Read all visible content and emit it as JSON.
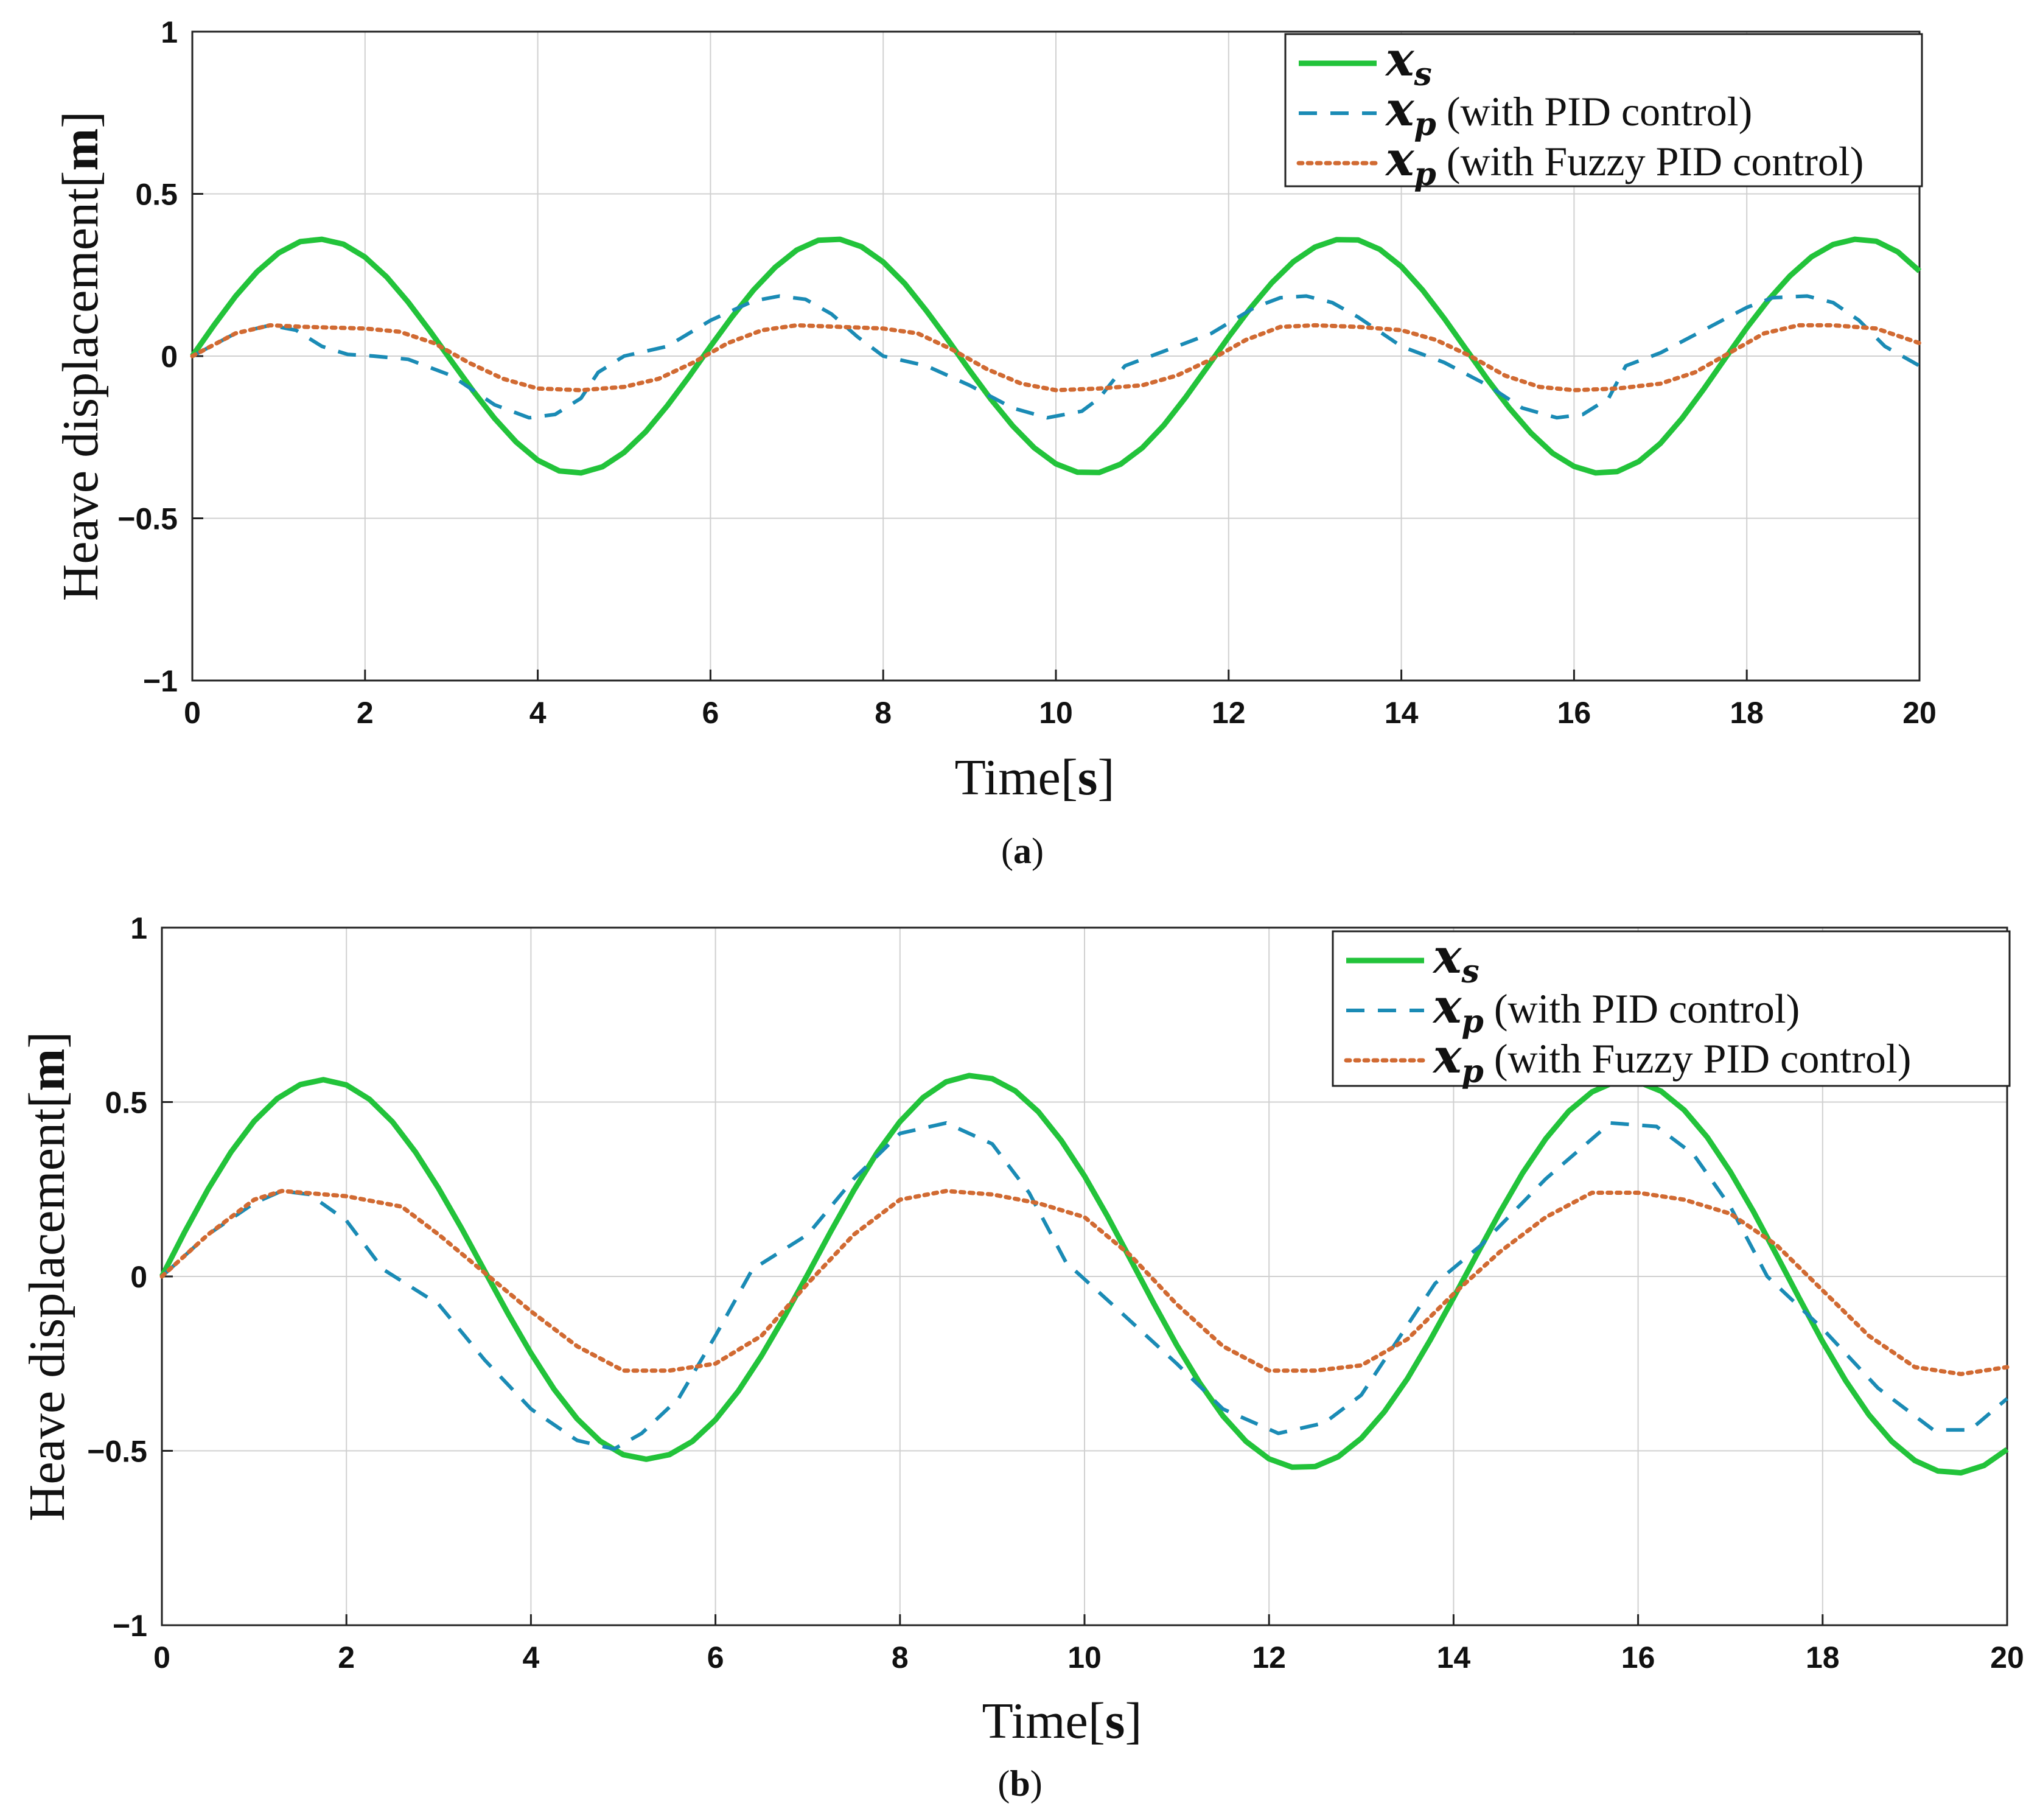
{
  "chart_data": [
    {
      "type": "line",
      "panel": "a",
      "caption_open": "(",
      "caption_letter": "a",
      "caption_close": ")",
      "xlabel_main": "Time",
      "xlabel_unit": "s",
      "ylabel_main": "Heave displacement",
      "ylabel_unit": "m",
      "xlim": [
        0,
        20
      ],
      "ylim": [
        -1,
        1
      ],
      "xticks": [
        0,
        2,
        4,
        6,
        8,
        10,
        12,
        14,
        16,
        18,
        20
      ],
      "yticks": [
        -1,
        -0.5,
        0,
        0.5,
        1
      ],
      "xtick_labels": [
        "0",
        "2",
        "4",
        "6",
        "8",
        "10",
        "12",
        "14",
        "16",
        "18",
        "20"
      ],
      "ytick_labels": [
        "−1",
        "−0.5",
        "0",
        "0.5",
        "1"
      ],
      "grid": true,
      "legend_position": "top-right",
      "series": [
        {
          "name": "x_s",
          "legend_symbol": "x",
          "legend_sub": "s",
          "legend_suffix": "",
          "color": "#22c33a",
          "style": "solid",
          "x": [
            0,
            0.25,
            0.5,
            0.75,
            1,
            1.25,
            1.5,
            1.75,
            2,
            2.25,
            2.5,
            2.75,
            3,
            3.25,
            3.5,
            3.75,
            4,
            4.25,
            4.5,
            4.75,
            5,
            5.25,
            5.5,
            5.75,
            6,
            6.25,
            6.5,
            6.75,
            7,
            7.25,
            7.5,
            7.75,
            8,
            8.25,
            8.5,
            8.75,
            9,
            9.25,
            9.5,
            9.75,
            10,
            10.25,
            10.5,
            10.75,
            11,
            11.25,
            11.5,
            11.75,
            12,
            12.25,
            12.5,
            12.75,
            13,
            13.25,
            13.5,
            13.75,
            14,
            14.25,
            14.5,
            14.75,
            15,
            15.25,
            15.5,
            15.75,
            16,
            16.25,
            16.5,
            16.75,
            17,
            17.25,
            17.5,
            17.75,
            18,
            18.25,
            18.5,
            18.75,
            19,
            19.25,
            19.5,
            19.75,
            20
          ],
          "y": [
            0,
            0.095,
            0.184,
            0.26,
            0.318,
            0.353,
            0.36,
            0.345,
            0.305,
            0.244,
            0.166,
            0.078,
            -0.015,
            -0.107,
            -0.192,
            -0.265,
            -0.321,
            -0.354,
            -0.36,
            -0.341,
            -0.297,
            -0.233,
            -0.153,
            -0.064,
            0.03,
            0.121,
            0.204,
            0.274,
            0.327,
            0.357,
            0.36,
            0.337,
            0.29,
            0.223,
            0.14,
            0.05,
            -0.044,
            -0.134,
            -0.215,
            -0.283,
            -0.332,
            -0.358,
            -0.359,
            -0.333,
            -0.283,
            -0.213,
            -0.128,
            -0.035,
            0.059,
            0.147,
            0.226,
            0.291,
            0.336,
            0.359,
            0.358,
            0.329,
            0.276,
            0.202,
            0.115,
            0.021,
            -0.073,
            -0.16,
            -0.237,
            -0.299,
            -0.34,
            -0.36,
            -0.356,
            -0.325,
            -0.269,
            -0.192,
            -0.102,
            -0.007,
            0.087,
            0.173,
            0.247,
            0.306,
            0.344,
            0.36,
            0.354,
            0.321,
            0.262
          ]
        },
        {
          "name": "x_p (with PID control)",
          "legend_symbol": "x",
          "legend_sub": "p",
          "legend_suffix": " (with PID control)",
          "color": "#1a8bb5",
          "style": "dashed",
          "x": [
            0,
            0.5,
            0.9,
            1.2,
            1.5,
            1.8,
            2.1,
            2.5,
            3,
            3.5,
            3.9,
            4.2,
            4.5,
            4.7,
            5,
            5.5,
            6,
            6.5,
            6.8,
            7.1,
            7.4,
            7.7,
            8,
            8.5,
            9,
            9.5,
            9.9,
            10.3,
            10.5,
            10.8,
            11.2,
            11.8,
            12.3,
            12.6,
            12.9,
            13.2,
            13.5,
            14,
            14.5,
            15,
            15.4,
            15.8,
            16.1,
            16.4,
            16.6,
            17,
            17.5,
            18,
            18.3,
            18.7,
            19,
            19.3,
            19.6,
            20
          ],
          "y": [
            0,
            0.07,
            0.095,
            0.08,
            0.03,
            0.005,
            0,
            -0.01,
            -0.06,
            -0.15,
            -0.19,
            -0.18,
            -0.13,
            -0.05,
            0,
            0.03,
            0.11,
            0.17,
            0.185,
            0.175,
            0.13,
            0.06,
            0,
            -0.03,
            -0.09,
            -0.16,
            -0.19,
            -0.17,
            -0.13,
            -0.03,
            0.01,
            0.07,
            0.15,
            0.18,
            0.185,
            0.165,
            0.12,
            0.03,
            -0.02,
            -0.09,
            -0.16,
            -0.19,
            -0.18,
            -0.13,
            -0.03,
            0.01,
            0.08,
            0.15,
            0.18,
            0.185,
            0.165,
            0.11,
            0.03,
            -0.03
          ]
        },
        {
          "name": "x_p (with Fuzzy PID control)",
          "legend_symbol": "x",
          "legend_sub": "p",
          "legend_suffix": " (with Fuzzy PID control)",
          "color": "#d16a32",
          "style": "dotted",
          "x": [
            0,
            0.5,
            0.9,
            1.3,
            2,
            2.4,
            2.8,
            3.2,
            3.6,
            4,
            4.5,
            5,
            5.4,
            5.8,
            6.2,
            6.6,
            7,
            7.5,
            8,
            8.4,
            8.8,
            9.2,
            9.6,
            10,
            10.5,
            11,
            11.4,
            11.8,
            12.2,
            12.6,
            13,
            13.5,
            14,
            14.4,
            14.8,
            15.2,
            15.6,
            16,
            16.5,
            17,
            17.4,
            17.8,
            18.2,
            18.6,
            19,
            19.5,
            20
          ],
          "y": [
            0,
            0.07,
            0.095,
            0.09,
            0.085,
            0.075,
            0.04,
            -0.02,
            -0.07,
            -0.1,
            -0.105,
            -0.095,
            -0.07,
            -0.02,
            0.04,
            0.08,
            0.095,
            0.09,
            0.085,
            0.07,
            0.02,
            -0.04,
            -0.085,
            -0.105,
            -0.1,
            -0.09,
            -0.06,
            -0.01,
            0.05,
            0.09,
            0.095,
            0.09,
            0.08,
            0.05,
            0,
            -0.06,
            -0.095,
            -0.105,
            -0.1,
            -0.085,
            -0.05,
            0.01,
            0.07,
            0.095,
            0.095,
            0.085,
            0.04
          ]
        }
      ]
    },
    {
      "type": "line",
      "panel": "b",
      "caption_open": "(",
      "caption_letter": "b",
      "caption_close": ")",
      "xlabel_main": "Time",
      "xlabel_unit": "s",
      "ylabel_main": "Heave displacement",
      "ylabel_unit": "m",
      "xlim": [
        0,
        20
      ],
      "ylim": [
        -1,
        1
      ],
      "xticks": [
        0,
        2,
        4,
        6,
        8,
        10,
        12,
        14,
        16,
        18,
        20
      ],
      "yticks": [
        -1,
        -0.5,
        0,
        0.5,
        1
      ],
      "xtick_labels": [
        "0",
        "2",
        "4",
        "6",
        "8",
        "10",
        "12",
        "14",
        "16",
        "18",
        "20"
      ],
      "ytick_labels": [
        "−1",
        "−0.5",
        "0",
        "0.5",
        "1"
      ],
      "grid": true,
      "legend_position": "top-right",
      "series": [
        {
          "name": "x_s",
          "legend_symbol": "x",
          "legend_sub": "s",
          "legend_suffix": "",
          "color": "#22c33a",
          "style": "solid",
          "x": [
            0,
            0.25,
            0.5,
            0.75,
            1,
            1.25,
            1.5,
            1.75,
            2,
            2.25,
            2.5,
            2.75,
            3,
            3.25,
            3.5,
            3.75,
            4,
            4.25,
            4.5,
            4.75,
            5,
            5.25,
            5.5,
            5.75,
            6,
            6.25,
            6.5,
            6.75,
            7,
            7.25,
            7.5,
            7.75,
            8,
            8.25,
            8.5,
            8.75,
            9,
            9.25,
            9.5,
            9.75,
            10,
            10.25,
            10.5,
            10.75,
            11,
            11.25,
            11.5,
            11.75,
            12,
            12.25,
            12.5,
            12.75,
            13,
            13.25,
            13.5,
            13.75,
            14,
            14.25,
            14.5,
            14.75,
            15,
            15.25,
            15.5,
            15.75,
            16,
            16.25,
            16.5,
            16.75,
            17,
            17.25,
            17.5,
            17.75,
            18,
            18.25,
            18.5,
            18.75,
            19,
            19.25,
            19.5,
            19.75,
            20
          ],
          "y": [
            0,
            0.129,
            0.25,
            0.357,
            0.445,
            0.51,
            0.55,
            0.564,
            0.549,
            0.508,
            0.443,
            0.356,
            0.252,
            0.137,
            0.015,
            -0.106,
            -0.22,
            -0.323,
            -0.408,
            -0.472,
            -0.511,
            -0.524,
            -0.511,
            -0.473,
            -0.411,
            -0.328,
            -0.227,
            -0.114,
            0.006,
            0.129,
            0.247,
            0.354,
            0.444,
            0.513,
            0.558,
            0.576,
            0.567,
            0.532,
            0.472,
            0.389,
            0.288,
            0.172,
            0.048,
            -0.077,
            -0.197,
            -0.306,
            -0.4,
            -0.473,
            -0.523,
            -0.547,
            -0.545,
            -0.517,
            -0.464,
            -0.388,
            -0.293,
            -0.181,
            -0.061,
            0.062,
            0.183,
            0.297,
            0.395,
            0.474,
            0.529,
            0.558,
            0.558,
            0.531,
            0.477,
            0.399,
            0.3,
            0.186,
            0.062,
            -0.064,
            -0.187,
            -0.299,
            -0.396,
            -0.473,
            -0.528,
            -0.558,
            -0.563,
            -0.542,
            -0.496
          ]
        },
        {
          "name": "x_p (with PID control)",
          "legend_symbol": "x",
          "legend_sub": "p",
          "legend_suffix": " (with PID control)",
          "color": "#1a8bb5",
          "style": "dashed",
          "x": [
            0,
            0.5,
            1,
            1.3,
            1.6,
            2,
            2.4,
            3,
            3.5,
            4,
            4.5,
            4.9,
            5.2,
            5.6,
            6,
            6.4,
            7,
            7.5,
            8,
            8.5,
            9,
            9.4,
            9.8,
            10.3,
            11,
            11.5,
            12.1,
            12.6,
            13,
            13.4,
            13.8,
            14.3,
            15,
            15.7,
            16.2,
            16.6,
            17,
            17.4,
            18,
            18.6,
            19.2,
            19.6,
            20
          ],
          "y": [
            0,
            0.12,
            0.21,
            0.245,
            0.235,
            0.16,
            0.02,
            -0.08,
            -0.24,
            -0.38,
            -0.47,
            -0.495,
            -0.45,
            -0.35,
            -0.17,
            0.02,
            0.12,
            0.28,
            0.41,
            0.44,
            0.38,
            0.24,
            0.04,
            -0.08,
            -0.25,
            -0.38,
            -0.45,
            -0.42,
            -0.34,
            -0.18,
            -0.02,
            0.09,
            0.28,
            0.44,
            0.43,
            0.35,
            0.2,
            0.0,
            -0.15,
            -0.32,
            -0.44,
            -0.44,
            -0.35
          ]
        },
        {
          "name": "x_p (with Fuzzy PID control)",
          "legend_symbol": "x",
          "legend_sub": "p",
          "legend_suffix": " (with Fuzzy PID control)",
          "color": "#d16a32",
          "style": "dotted",
          "x": [
            0,
            0.5,
            1,
            1.3,
            2,
            2.6,
            3,
            3.5,
            4,
            4.5,
            5,
            5.5,
            6,
            6.5,
            7,
            7.5,
            8,
            8.5,
            9,
            9.5,
            10,
            10.5,
            11,
            11.5,
            12,
            12.5,
            13,
            13.5,
            14,
            14.5,
            15,
            15.5,
            16,
            16.5,
            17,
            17.5,
            18,
            18.5,
            19,
            19.5,
            20
          ],
          "y": [
            0,
            0.12,
            0.22,
            0.245,
            0.23,
            0.2,
            0.12,
            0.01,
            -0.1,
            -0.2,
            -0.27,
            -0.27,
            -0.25,
            -0.17,
            -0.02,
            0.12,
            0.22,
            0.245,
            0.235,
            0.21,
            0.17,
            0.06,
            -0.08,
            -0.2,
            -0.27,
            -0.27,
            -0.255,
            -0.18,
            -0.05,
            0.07,
            0.17,
            0.24,
            0.24,
            0.22,
            0.18,
            0.09,
            -0.04,
            -0.17,
            -0.26,
            -0.28,
            -0.26
          ]
        }
      ]
    }
  ]
}
